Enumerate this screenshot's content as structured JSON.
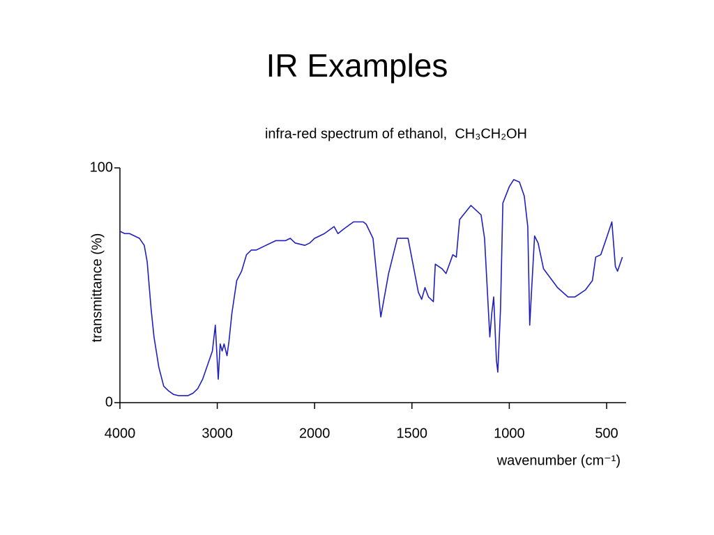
{
  "title": "IR Examples",
  "chart_data": {
    "type": "line",
    "title": "infra-red spectrum of ethanol,  CH₃CH₂OH",
    "xlabel": "wavenumber (cm⁻¹)",
    "ylabel": "transmittance (%)",
    "color": "#1f1fbf",
    "xlim": [
      4000,
      400
    ],
    "xticks": [
      4000,
      3000,
      2000,
      1500,
      1000,
      500
    ],
    "ylim": [
      0,
      100
    ],
    "yticks": [
      0,
      100
    ],
    "x": [
      4000,
      3950,
      3900,
      3850,
      3800,
      3750,
      3720,
      3700,
      3680,
      3650,
      3600,
      3550,
      3500,
      3450,
      3400,
      3300,
      3250,
      3200,
      3150,
      3100,
      3050,
      3020,
      2990,
      2970,
      2950,
      2930,
      2900,
      2880,
      2850,
      2800,
      2750,
      2700,
      2650,
      2600,
      2550,
      2500,
      2400,
      2300,
      2250,
      2200,
      2100,
      2050,
      2000,
      1950,
      1900,
      1880,
      1850,
      1800,
      1750,
      1735,
      1700,
      1660,
      1620,
      1575,
      1520,
      1467,
      1450,
      1433,
      1415,
      1390,
      1380,
      1345,
      1325,
      1290,
      1272,
      1255,
      1197,
      1145,
      1127,
      1100,
      1090,
      1080,
      1066,
      1059,
      1045,
      1033,
      1000,
      977,
      948,
      923,
      905,
      895,
      884,
      870,
      852,
      824,
      788,
      752,
      698,
      663,
      609,
      573,
      556,
      530,
      501,
      473,
      455,
      444,
      419
    ],
    "values": [
      73,
      72,
      72,
      71,
      70,
      67,
      60,
      50,
      40,
      28,
      15,
      7,
      5,
      3.5,
      3,
      3,
      4,
      6,
      10,
      16,
      22,
      33,
      10,
      25,
      22,
      25,
      20,
      26,
      38,
      52,
      56,
      63,
      65,
      65,
      66,
      67,
      69,
      69,
      70,
      68,
      67,
      68,
      70,
      72,
      75,
      72,
      74,
      77,
      77,
      76,
      70,
      36.5,
      55,
      70,
      70,
      47,
      44,
      49,
      45,
      43,
      59,
      57,
      55,
      63,
      62,
      78,
      84,
      80,
      70,
      28,
      38,
      45,
      18,
      13,
      40,
      85,
      92,
      95,
      94,
      88,
      75,
      33,
      50,
      71,
      68,
      57,
      53,
      49,
      45,
      45,
      48,
      52,
      62,
      63,
      70,
      77,
      58,
      56,
      62
    ]
  }
}
